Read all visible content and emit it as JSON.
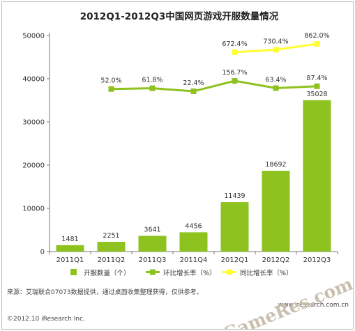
{
  "chart_data": {
    "type": "bar",
    "title": "2012Q1-2012Q3中国网页游戏开服数量情况",
    "categories": [
      "2011Q1",
      "2011Q2",
      "2011Q3",
      "2011Q4",
      "2012Q1",
      "2012Q2",
      "2012Q3"
    ],
    "ylim": [
      0,
      50000
    ],
    "yticks": [
      0,
      10000,
      20000,
      30000,
      40000,
      50000
    ],
    "grid": false,
    "legend_position": "bottom",
    "series": [
      {
        "name": "开服数量（个）",
        "kind": "bar",
        "color": "#8dc21f",
        "values": [
          1481,
          2251,
          3641,
          4456,
          11439,
          18692,
          35028
        ],
        "labels": [
          "1481",
          "2251",
          "3641",
          "4456",
          "11439",
          "18692",
          "35028"
        ]
      },
      {
        "name": "环比增长率（%）",
        "kind": "line",
        "color": "#8dc21f",
        "values": [
          null,
          52.0,
          61.8,
          22.4,
          156.7,
          63.4,
          87.4
        ],
        "labels": [
          null,
          "52.0%",
          "61.8%",
          "22.4%",
          "156.7%",
          "63.4%",
          "87.4%"
        ]
      },
      {
        "name": "同比增长率（%）",
        "kind": "line",
        "color": "#ffff33",
        "values": [
          null,
          null,
          null,
          null,
          672.4,
          730.4,
          862.0
        ],
        "labels": [
          null,
          null,
          null,
          null,
          "672.4%",
          "730.4%",
          "862.0%"
        ]
      }
    ]
  },
  "footer": {
    "source": "来源：艾瑞联合07073数据提供，通过桌面收集整理获得，仅供参考。",
    "copyright": "©2012.10 iResearch Inc.",
    "site": "www.iresearch.com.cn"
  },
  "watermark": "GameRes.com"
}
